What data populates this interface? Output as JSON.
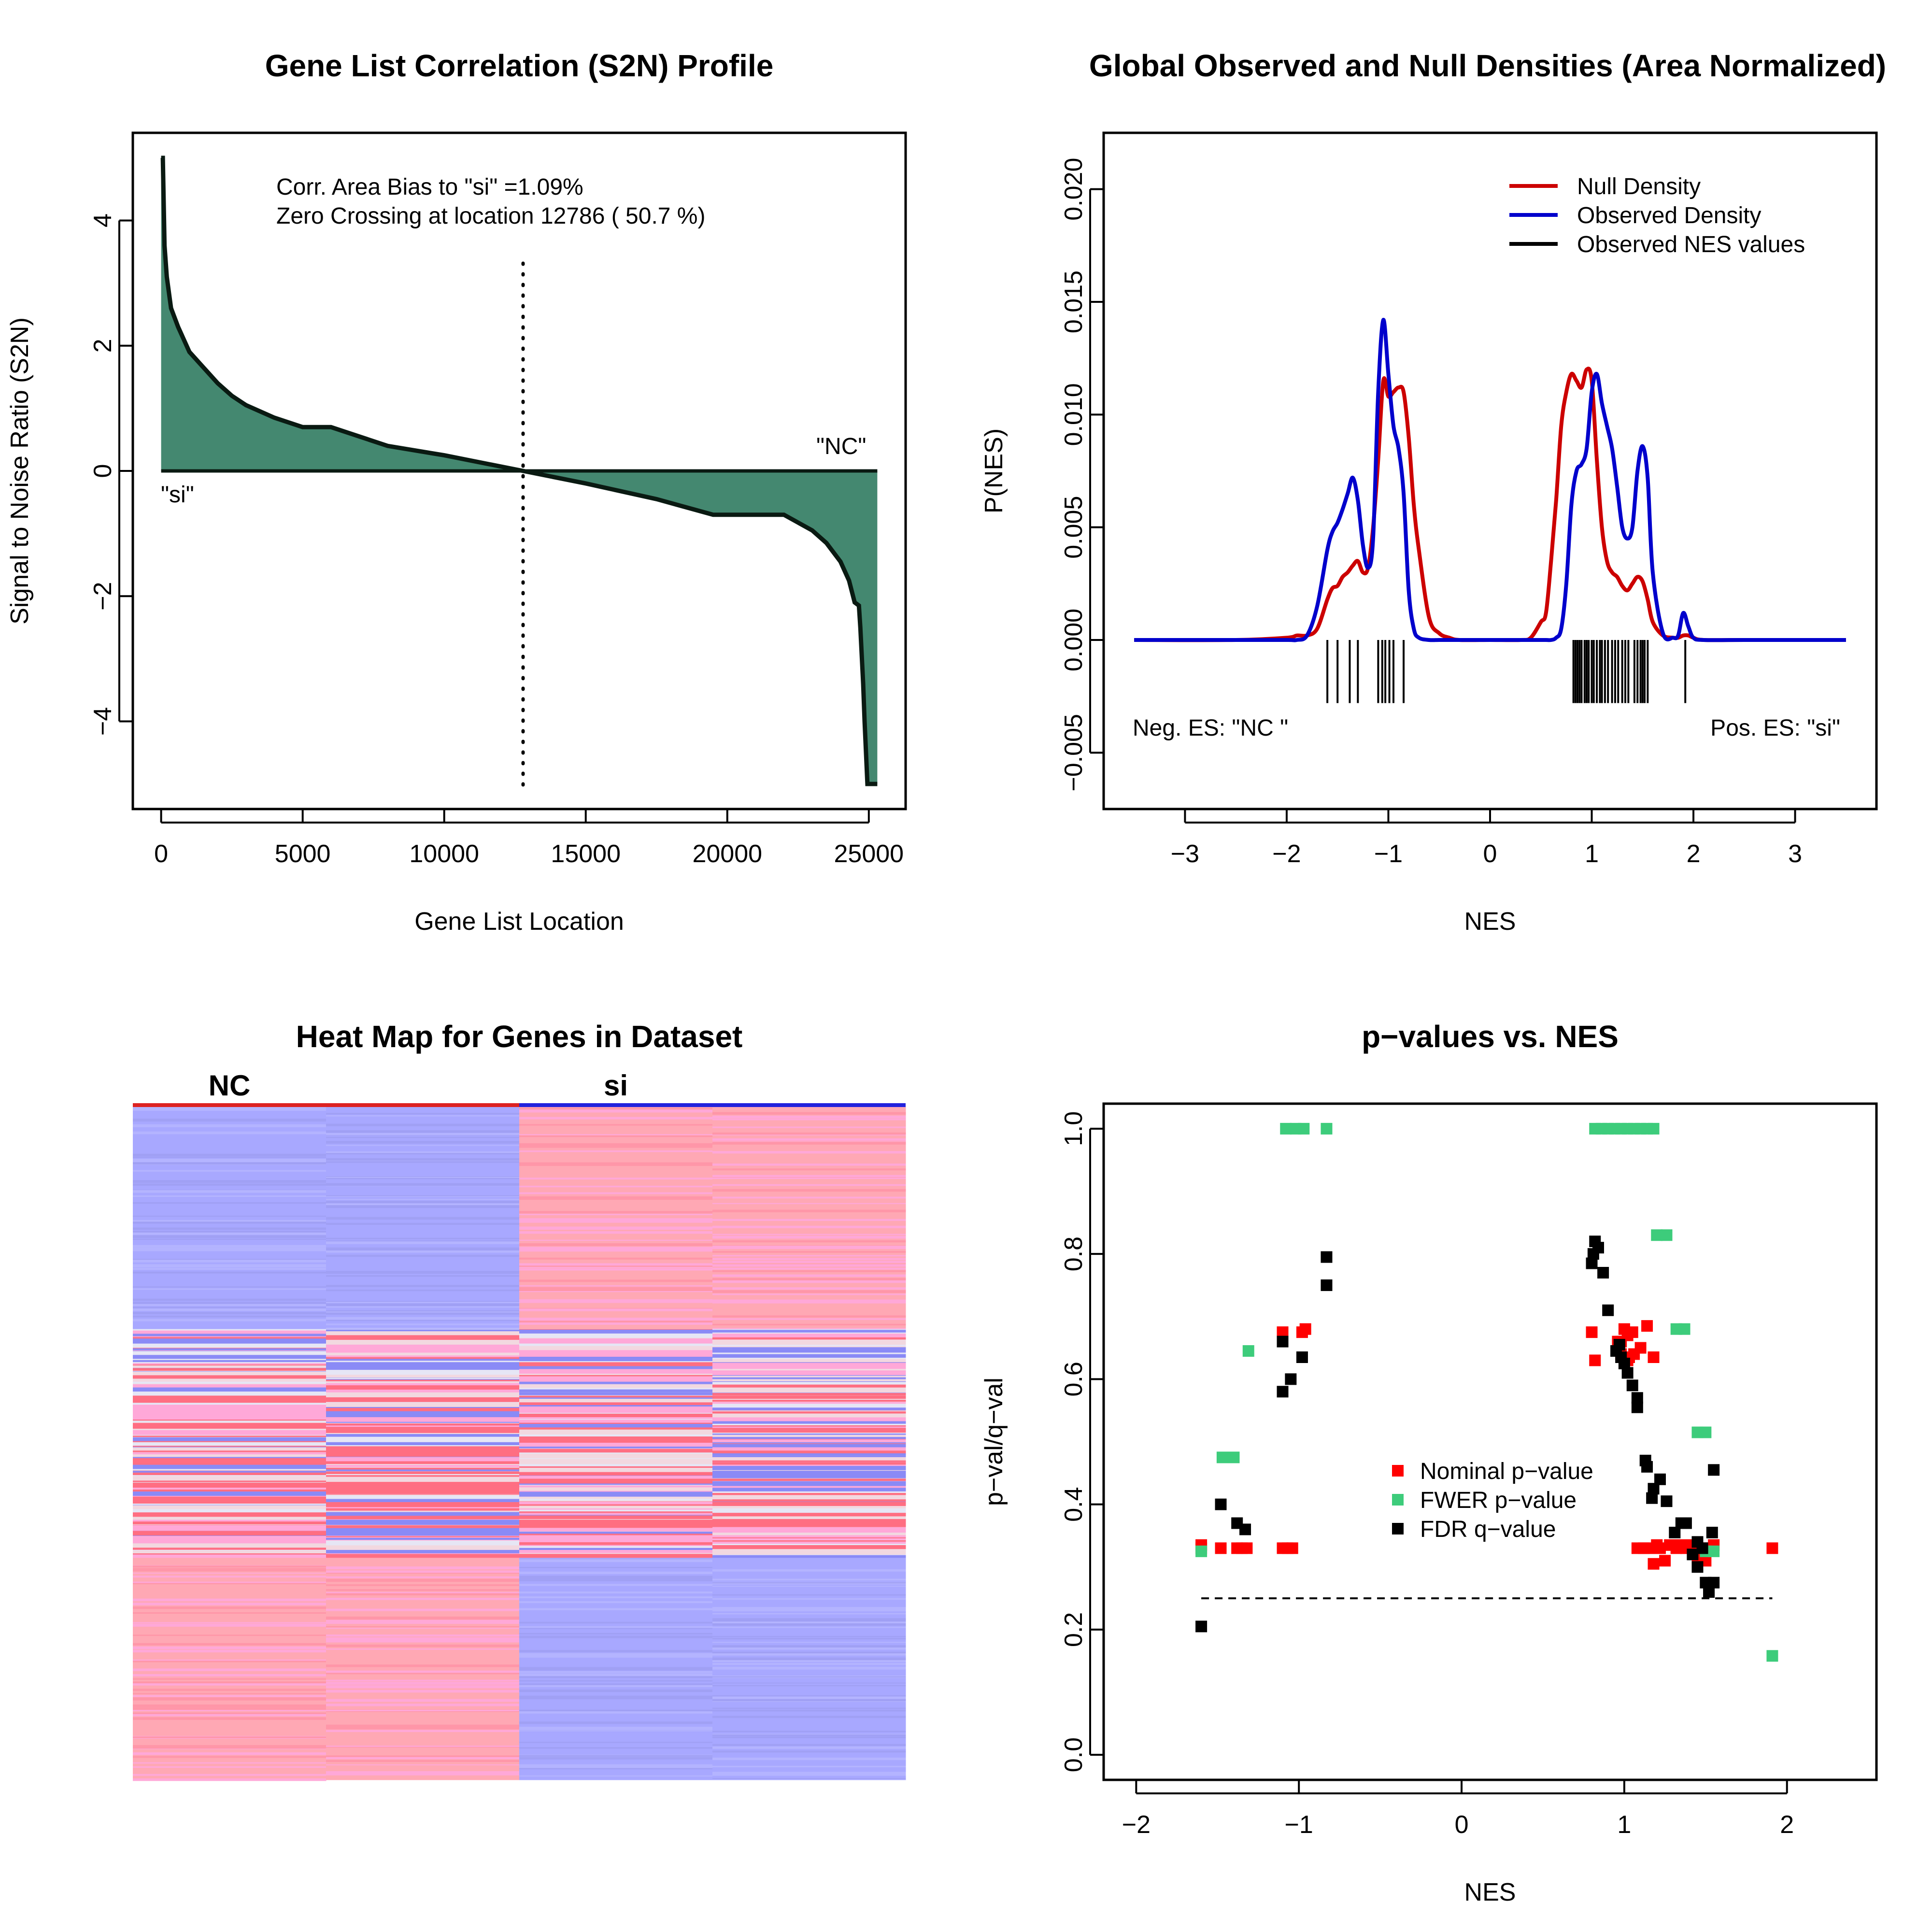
{
  "colors": {
    "s2n_fill": "#448870",
    "null_density": "#CC0000",
    "observed_density": "#0000CC",
    "nes_ticks": "#000000",
    "nominal_p": "#FF0000",
    "fwer_p": "#3DCC7B",
    "fdr_q": "#000000",
    "heat_blue": "#A8A8FF",
    "heat_red": "#FFA8B4",
    "heat_pink": "#FFA8D8",
    "heat_white": "#E6E6F5",
    "nc_bar": "#DD2222",
    "si_bar": "#2222DD"
  },
  "panel1": {
    "title": "Gene List Correlation (S2N) Profile",
    "xlabel": "Gene List Location",
    "ylabel": "Signal to Noise Ratio (S2N)",
    "annotation_line1": "Corr. Area Bias to \"si\" =1.09%",
    "annotation_line2": "Zero Crossing at location  12786  ( 50.7  %)",
    "label_left": "\"si\"",
    "label_right": "\"NC\"",
    "x_ticks": [
      "0",
      "5000",
      "10000",
      "15000",
      "20000",
      "25000"
    ],
    "y_ticks": [
      "−4",
      "−2",
      "0",
      "2",
      "4"
    ]
  },
  "panel2": {
    "title": "Global Observed and Null Densities (Area Normalized)",
    "xlabel": "NES",
    "ylabel": "P(NES)",
    "legend": [
      "Null Density",
      "Observed Density",
      "Observed NES values"
    ],
    "neg_label": "Neg. ES: \"NC \"",
    "pos_label": "Pos. ES: \"si\"",
    "x_ticks": [
      "−3",
      "−2",
      "−1",
      "0",
      "1",
      "2",
      "3"
    ],
    "y_ticks": [
      "−0.005",
      "0.000",
      "0.005",
      "0.010",
      "0.015",
      "0.020"
    ]
  },
  "panel3": {
    "title": "Heat Map for Genes in Dataset",
    "col_label_nc": "NC",
    "col_label_si": "si"
  },
  "panel4": {
    "title": "p−values vs. NES",
    "xlabel": "NES",
    "ylabel": "p−val/q−val",
    "legend": [
      "Nominal p−value",
      "FWER p−value",
      "FDR q−value"
    ],
    "x_ticks": [
      "−2",
      "−1",
      "0",
      "1",
      "2"
    ],
    "y_ticks": [
      "0.0",
      "0.2",
      "0.4",
      "0.6",
      "0.8",
      "1.0"
    ]
  },
  "chart_data": [
    {
      "type": "area",
      "title": "Gene List Correlation (S2N) Profile",
      "xlabel": "Gene List Location",
      "ylabel": "Signal to Noise Ratio (S2N)",
      "xlim": [
        -1000,
        26300
      ],
      "ylim": [
        -5.4,
        5.4
      ],
      "zero_crossing": 12786,
      "x": [
        0,
        60,
        120,
        200,
        350,
        600,
        1000,
        1500,
        2000,
        2500,
        3000,
        4000,
        5000,
        6000,
        8000,
        10000,
        12786,
        15000,
        17500,
        19500,
        22000,
        23000,
        23500,
        24000,
        24300,
        24500,
        24650,
        24700,
        24800,
        24850,
        24950,
        25300
      ],
      "y": [
        5.0,
        5.0,
        3.6,
        3.1,
        2.6,
        2.3,
        1.9,
        1.65,
        1.4,
        1.2,
        1.05,
        0.85,
        0.7,
        0.7,
        0.4,
        0.25,
        0.0,
        -0.2,
        -0.45,
        -0.7,
        -0.7,
        -0.95,
        -1.15,
        -1.45,
        -1.75,
        -2.1,
        -2.15,
        -2.5,
        -3.4,
        -4.0,
        -5.0,
        -5.0
      ]
    },
    {
      "type": "line",
      "title": "Global Observed and Null Densities (Area Normalized)",
      "xlabel": "NES",
      "ylabel": "P(NES)",
      "xlim": [
        -3.8,
        3.8
      ],
      "ylim": [
        -0.0075,
        0.0225
      ],
      "legend_position": "top-right",
      "x": [
        -3.5,
        -2.5,
        -2.0,
        -1.9,
        -1.8,
        -1.7,
        -1.6,
        -1.55,
        -1.5,
        -1.45,
        -1.4,
        -1.35,
        -1.3,
        -1.25,
        -1.2,
        -1.15,
        -1.1,
        -1.05,
        -1.0,
        -0.95,
        -0.9,
        -0.85,
        -0.8,
        -0.75,
        -0.7,
        -0.6,
        -0.5,
        -0.4,
        -0.3,
        0.0,
        0.3,
        0.4,
        0.5,
        0.55,
        0.6,
        0.65,
        0.7,
        0.75,
        0.8,
        0.85,
        0.9,
        0.95,
        1.0,
        1.05,
        1.1,
        1.15,
        1.2,
        1.25,
        1.3,
        1.35,
        1.4,
        1.45,
        1.5,
        1.55,
        1.6,
        1.7,
        1.8,
        1.85,
        1.9,
        1.95,
        2.0,
        2.1,
        2.5,
        3.5
      ],
      "series": [
        {
          "name": "Null Density",
          "values": [
            0,
            0,
            0.0001,
            0.0002,
            0.0002,
            0.0005,
            0.0018,
            0.0023,
            0.0024,
            0.0028,
            0.003,
            0.0033,
            0.0035,
            0.003,
            0.0032,
            0.005,
            0.008,
            0.0115,
            0.0108,
            0.011,
            0.0112,
            0.011,
            0.009,
            0.006,
            0.004,
            0.001,
            0.0003,
            0.0001,
            0,
            0,
            0,
            0.0001,
            0.0008,
            0.0012,
            0.0035,
            0.0062,
            0.0095,
            0.011,
            0.0118,
            0.0115,
            0.0112,
            0.012,
            0.0115,
            0.008,
            0.005,
            0.0035,
            0.003,
            0.0028,
            0.0024,
            0.0022,
            0.0025,
            0.0028,
            0.0026,
            0.0018,
            0.0008,
            0.0002,
            0.0001,
            0.0001,
            0.0002,
            0.0002,
            0.0001,
            0,
            0,
            0
          ]
        },
        {
          "name": "Observed Density",
          "values": [
            0,
            0,
            0,
            0,
            0.0002,
            0.0015,
            0.004,
            0.0048,
            0.0052,
            0.0058,
            0.0065,
            0.0072,
            0.0062,
            0.0042,
            0.0032,
            0.0045,
            0.011,
            0.0142,
            0.0118,
            0.0095,
            0.0085,
            0.0065,
            0.0022,
            0.0005,
            0.0001,
            0,
            0,
            0,
            0,
            0,
            0,
            0,
            0,
            0,
            0,
            0.0001,
            0.0005,
            0.0025,
            0.006,
            0.0075,
            0.0078,
            0.0085,
            0.011,
            0.0118,
            0.0105,
            0.0095,
            0.0085,
            0.0068,
            0.005,
            0.0045,
            0.005,
            0.0075,
            0.0086,
            0.0072,
            0.003,
            0.0003,
            0.0001,
            0.0002,
            0.0012,
            0.0006,
            0.0001,
            0,
            0,
            0
          ]
        }
      ],
      "observed_nes": [
        -1.6,
        -1.5,
        -1.38,
        -1.3,
        -1.1,
        -1.06,
        -1.03,
        -0.99,
        -0.95,
        -0.85,
        0.82,
        0.84,
        0.86,
        0.88,
        0.9,
        0.93,
        0.95,
        0.97,
        1.0,
        1.02,
        1.05,
        1.08,
        1.1,
        1.13,
        1.16,
        1.2,
        1.23,
        1.26,
        1.3,
        1.33,
        1.36,
        1.42,
        1.45,
        1.48,
        1.5,
        1.52,
        1.55,
        1.92
      ]
    },
    {
      "type": "heatmap",
      "title": "Heat Map for Genes in Dataset",
      "columns": [
        "NC",
        "NC",
        "si",
        "si"
      ],
      "column_groups": [
        "NC",
        "si"
      ],
      "blocks": [
        {
          "rows_fraction": 0.33,
          "values": [
            "low",
            "low",
            "high",
            "high"
          ]
        },
        {
          "rows_fraction": 0.34,
          "values": [
            "mixed",
            "mixed",
            "mixed",
            "mixed"
          ]
        },
        {
          "rows_fraction": 0.33,
          "values": [
            "high",
            "high",
            "low",
            "low"
          ]
        }
      ]
    },
    {
      "type": "scatter",
      "title": "p−values vs. NES",
      "xlabel": "NES",
      "ylabel": "p−val/q−val",
      "xlim": [
        -2.2,
        2.55
      ],
      "ylim": [
        -0.04,
        1.04
      ],
      "legend_position": "center",
      "reference_line": 0.25,
      "series": [
        {
          "name": "Nominal p−value",
          "points": [
            [
              -1.6,
              0.335
            ],
            [
              -1.6,
              0.33
            ],
            [
              -1.48,
              0.33
            ],
            [
              -1.38,
              0.33
            ],
            [
              -1.35,
              0.33
            ],
            [
              -1.32,
              0.33
            ],
            [
              -1.1,
              0.33
            ],
            [
              -1.07,
              0.33
            ],
            [
              -1.04,
              0.33
            ],
            [
              -1.1,
              0.675
            ],
            [
              -0.98,
              0.675
            ],
            [
              -0.96,
              0.68
            ],
            [
              0.8,
              0.675
            ],
            [
              0.82,
              0.63
            ],
            [
              0.96,
              0.66
            ],
            [
              0.98,
              0.66
            ],
            [
              1.0,
              0.68
            ],
            [
              1.02,
              0.67
            ],
            [
              1.05,
              0.675
            ],
            [
              0.98,
              0.64
            ],
            [
              1.02,
              0.63
            ],
            [
              1.1,
              0.65
            ],
            [
              1.14,
              0.685
            ],
            [
              1.18,
              0.635
            ],
            [
              1.03,
              0.635
            ],
            [
              1.06,
              0.64
            ],
            [
              1.08,
              0.33
            ],
            [
              1.12,
              0.33
            ],
            [
              1.15,
              0.33
            ],
            [
              1.2,
              0.335
            ],
            [
              1.22,
              0.33
            ],
            [
              1.25,
              0.31
            ],
            [
              1.28,
              0.335
            ],
            [
              1.32,
              0.33
            ],
            [
              1.35,
              0.335
            ],
            [
              1.38,
              0.33
            ],
            [
              1.42,
              0.335
            ],
            [
              1.45,
              0.315
            ],
            [
              1.48,
              0.33
            ],
            [
              1.5,
              0.31
            ],
            [
              1.52,
              0.33
            ],
            [
              1.55,
              0.335
            ],
            [
              1.18,
              0.305
            ],
            [
              1.91,
              0.33
            ]
          ]
        },
        {
          "name": "FWER p−value",
          "points": [
            [
              -1.6,
              0.325
            ],
            [
              -1.47,
              0.475
            ],
            [
              -1.4,
              0.475
            ],
            [
              -1.31,
              0.645
            ],
            [
              -1.08,
              1.0
            ],
            [
              -1.02,
              1.0
            ],
            [
              -0.97,
              1.0
            ],
            [
              -0.83,
              1.0
            ],
            [
              0.82,
              1.0
            ],
            [
              0.86,
              1.0
            ],
            [
              0.9,
              1.0
            ],
            [
              0.94,
              1.0
            ],
            [
              0.98,
              1.0
            ],
            [
              1.02,
              1.0
            ],
            [
              1.06,
              1.0
            ],
            [
              1.1,
              1.0
            ],
            [
              1.14,
              1.0
            ],
            [
              1.18,
              1.0
            ],
            [
              1.2,
              0.83
            ],
            [
              1.26,
              0.83
            ],
            [
              1.32,
              0.68
            ],
            [
              1.37,
              0.68
            ],
            [
              1.45,
              0.515
            ],
            [
              1.5,
              0.515
            ],
            [
              1.5,
              0.325
            ],
            [
              1.55,
              0.325
            ],
            [
              1.91,
              0.158
            ]
          ]
        },
        {
          "name": "FDR q−value",
          "points": [
            [
              -1.6,
              0.205
            ],
            [
              -1.48,
              0.4
            ],
            [
              -1.38,
              0.37
            ],
            [
              -1.33,
              0.36
            ],
            [
              -1.1,
              0.66
            ],
            [
              -1.1,
              0.58
            ],
            [
              -1.05,
              0.6
            ],
            [
              -0.98,
              0.635
            ],
            [
              -0.83,
              0.795
            ],
            [
              -0.83,
              0.75
            ],
            [
              0.8,
              0.785
            ],
            [
              0.81,
              0.8
            ],
            [
              0.82,
              0.82
            ],
            [
              0.84,
              0.81
            ],
            [
              0.87,
              0.77
            ],
            [
              0.9,
              0.71
            ],
            [
              0.95,
              0.645
            ],
            [
              0.97,
              0.655
            ],
            [
              0.98,
              0.635
            ],
            [
              1.0,
              0.625
            ],
            [
              1.02,
              0.61
            ],
            [
              1.05,
              0.59
            ],
            [
              1.08,
              0.57
            ],
            [
              1.08,
              0.555
            ],
            [
              1.13,
              0.47
            ],
            [
              1.14,
              0.46
            ],
            [
              1.17,
              0.41
            ],
            [
              1.18,
              0.425
            ],
            [
              1.22,
              0.44
            ],
            [
              1.26,
              0.405
            ],
            [
              1.31,
              0.355
            ],
            [
              1.35,
              0.37
            ],
            [
              1.38,
              0.37
            ],
            [
              1.42,
              0.32
            ],
            [
              1.45,
              0.3
            ],
            [
              1.45,
              0.34
            ],
            [
              1.48,
              0.33
            ],
            [
              1.5,
              0.275
            ],
            [
              1.52,
              0.26
            ],
            [
              1.55,
              0.275
            ],
            [
              1.54,
              0.355
            ],
            [
              1.55,
              0.455
            ]
          ]
        }
      ]
    }
  ]
}
